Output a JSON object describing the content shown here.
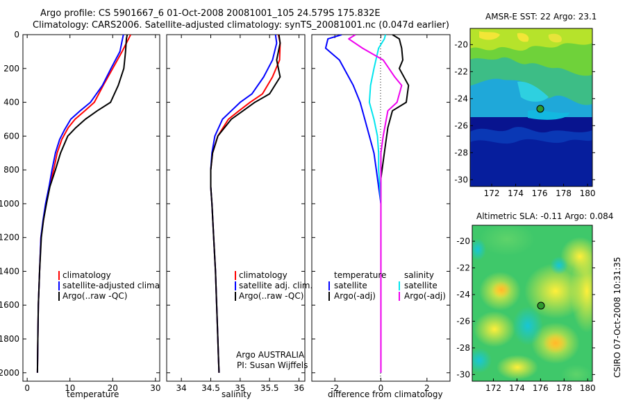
{
  "header": {
    "title_line1": "Argo profile: CS 5901667_6 01-Oct-2008 20081001_105 24.579S 175.832E",
    "title_line2": "Climatology: CARS2006. Satellite-adjusted climatology: synTS_20081001.nc (0.047d earlier)"
  },
  "footer": {
    "stamp": "CSIRO 07-Oct-2008 10:31:35"
  },
  "colors": {
    "climatology": "#ff0000",
    "satellite": "#0000ff",
    "argo": "#000000",
    "satellite_cyan": "#00e5ee",
    "argo_adj": "#ee00ee"
  },
  "chart_data": [
    {
      "id": "temperature",
      "type": "line",
      "xlabel": "temperature",
      "xlim": [
        -1,
        31
      ],
      "ylim": [
        0,
        2050
      ],
      "xticks": [
        0,
        10,
        20,
        30
      ],
      "yticks": [
        0,
        200,
        400,
        600,
        800,
        1000,
        1200,
        1400,
        1600,
        1800,
        2000
      ],
      "legend": [
        "climatology",
        "satellite-adjusted climatology",
        "Argo(..raw -QC)"
      ],
      "series": [
        {
          "name": "climatology",
          "color": "red",
          "x": [
            24.2,
            23.7,
            22.2,
            20.0,
            17.8,
            15.7,
            13.5,
            11.2,
            9.6,
            8.1,
            7.0,
            6.2,
            5.2,
            4.4,
            3.8,
            3.2,
            2.9,
            2.6,
            2.5,
            2.4
          ],
          "y": [
            0,
            25,
            100,
            200,
            300,
            400,
            450,
            500,
            550,
            620,
            700,
            800,
            900,
            1000,
            1100,
            1200,
            1400,
            1600,
            1800,
            2000
          ]
        },
        {
          "name": "satellite-adjusted climatology",
          "color": "blue",
          "x": [
            22.5,
            22.3,
            21.7,
            19.6,
            17.6,
            14.8,
            12.4,
            10.2,
            8.8,
            7.6,
            6.6,
            5.8,
            5.1,
            4.3,
            3.7,
            3.2,
            2.9,
            2.6,
            2.5,
            2.4
          ],
          "y": [
            0,
            25,
            100,
            200,
            300,
            400,
            450,
            500,
            560,
            620,
            700,
            800,
            900,
            1000,
            1100,
            1200,
            1400,
            1600,
            1800,
            2000
          ]
        },
        {
          "name": "Argo(..raw -QC)",
          "color": "black",
          "x": [
            23.4,
            23.2,
            23.0,
            22.6,
            21.3,
            19.5,
            16.4,
            13.6,
            11.4,
            9.5,
            7.8,
            6.6,
            5.3,
            4.5,
            3.8,
            3.3,
            2.9,
            2.6,
            2.5,
            2.4
          ],
          "y": [
            0,
            25,
            100,
            200,
            300,
            400,
            450,
            500,
            550,
            600,
            700,
            800,
            900,
            1000,
            1100,
            1200,
            1400,
            1600,
            1800,
            2000
          ]
        }
      ]
    },
    {
      "id": "salinity",
      "type": "line",
      "xlabel": "salinity",
      "xlim": [
        33.75,
        36.1
      ],
      "ylim": [
        0,
        2050
      ],
      "xticks": [
        34,
        34.5,
        35,
        35.5,
        36
      ],
      "legend": [
        "climatology",
        "satellite adj. clim.",
        "Argo(..raw -QC)"
      ],
      "annotation_line1": "Argo AUSTRALIA",
      "annotation_line2": "PI: Susan Wijffels",
      "series": [
        {
          "name": "climatology",
          "color": "red",
          "x": [
            35.65,
            35.68,
            35.67,
            35.55,
            35.38,
            35.17,
            34.98,
            34.8,
            34.62,
            34.53,
            34.5,
            34.5,
            34.52,
            34.55,
            34.58,
            34.6,
            34.62,
            34.63,
            34.64
          ],
          "y": [
            0,
            50,
            150,
            250,
            350,
            400,
            450,
            500,
            600,
            700,
            800,
            900,
            1000,
            1200,
            1400,
            1600,
            1800,
            1900,
            2000
          ]
        },
        {
          "name": "satellite adj. clim.",
          "color": "blue",
          "x": [
            35.6,
            35.62,
            35.55,
            35.4,
            35.2,
            35.0,
            34.85,
            34.7,
            34.57,
            34.52,
            34.5,
            34.5,
            34.52,
            34.55,
            34.58,
            34.6,
            34.62,
            34.63,
            34.64
          ],
          "y": [
            0,
            50,
            150,
            250,
            350,
            400,
            450,
            500,
            600,
            700,
            800,
            900,
            1000,
            1200,
            1400,
            1600,
            1800,
            1900,
            2000
          ]
        },
        {
          "name": "Argo(..raw -QC)",
          "color": "black",
          "x": [
            35.66,
            35.68,
            35.62,
            35.68,
            35.5,
            35.25,
            35.05,
            34.85,
            34.62,
            34.53,
            34.5,
            34.5,
            34.52,
            34.55,
            34.58,
            34.6,
            34.62,
            34.63,
            34.64
          ],
          "y": [
            0,
            50,
            150,
            250,
            350,
            400,
            450,
            500,
            600,
            700,
            800,
            900,
            1000,
            1200,
            1400,
            1600,
            1800,
            1900,
            2000
          ]
        }
      ]
    },
    {
      "id": "difference",
      "type": "line",
      "xlabel": "difference from climatology",
      "xlim": [
        -3,
        3
      ],
      "ylim": [
        0,
        2050
      ],
      "xticks": [
        -2,
        0,
        2
      ],
      "legend_temperature_heading": "temperature",
      "legend_salinity_heading": "salinity",
      "legend": [
        "satellite",
        "Argo(-adj)",
        "satellite",
        "Argo(-adj)"
      ],
      "series": [
        {
          "name": "temperature satellite",
          "color": "blue",
          "x": [
            -1.7,
            -2.3,
            -2.4,
            -1.8,
            -1.2,
            -0.9,
            -0.7,
            -0.5,
            -0.3,
            -0.2,
            -0.1,
            0.0,
            0.0,
            0.0
          ],
          "y": [
            0,
            25,
            80,
            150,
            300,
            400,
            500,
            600,
            700,
            800,
            900,
            1000,
            1500,
            2000
          ]
        },
        {
          "name": "temperature Argo(-adj)",
          "color": "black",
          "x": [
            0.5,
            0.8,
            0.9,
            0.95,
            0.8,
            1.2,
            1.1,
            0.5,
            0.3,
            0.2,
            0.1,
            0.0,
            0.0,
            0.0,
            0.0
          ],
          "y": [
            0,
            25,
            80,
            150,
            200,
            300,
            400,
            450,
            550,
            650,
            750,
            850,
            1000,
            1500,
            2000
          ]
        },
        {
          "name": "salinity satellite",
          "color": "cyan",
          "x": [
            0.2,
            0.15,
            -0.1,
            -0.3,
            -0.45,
            -0.5,
            -0.3,
            -0.15,
            -0.1,
            -0.1,
            0.0,
            0.0
          ],
          "y": [
            0,
            25,
            80,
            200,
            300,
            400,
            500,
            600,
            700,
            800,
            1000,
            2000
          ]
        },
        {
          "name": "salinity Argo(-adj)",
          "color": "magenta",
          "x": [
            -1.1,
            -1.4,
            -0.8,
            0.1,
            0.6,
            0.9,
            0.7,
            0.3,
            0.1,
            0.0,
            0.0,
            0.0
          ],
          "y": [
            0,
            25,
            80,
            150,
            250,
            300,
            400,
            450,
            600,
            700,
            900,
            2000
          ]
        }
      ]
    },
    {
      "id": "sst_map",
      "type": "heatmap",
      "title": "AMSR-E SST: 22 Argo: 23.1",
      "xlim": [
        170.2,
        180.4
      ],
      "ylim": [
        -30.5,
        -18.8
      ],
      "xticks": [
        172,
        174,
        176,
        178,
        180
      ],
      "yticks": [
        -20,
        -22,
        -24,
        -26,
        -28,
        -30
      ],
      "float_position": {
        "lon": 175.832,
        "lat": -24.579
      }
    },
    {
      "id": "sla_map",
      "type": "heatmap",
      "title": "Altimetric SLA: -0.11 Argo: 0.084",
      "xlim": [
        170.2,
        180.4
      ],
      "ylim": [
        -30.5,
        -18.8
      ],
      "xticks": [
        172,
        174,
        176,
        178,
        180
      ],
      "yticks": [
        -20,
        -22,
        -24,
        -26,
        -28,
        -30
      ],
      "float_position": {
        "lon": 175.832,
        "lat": -24.579
      }
    }
  ]
}
